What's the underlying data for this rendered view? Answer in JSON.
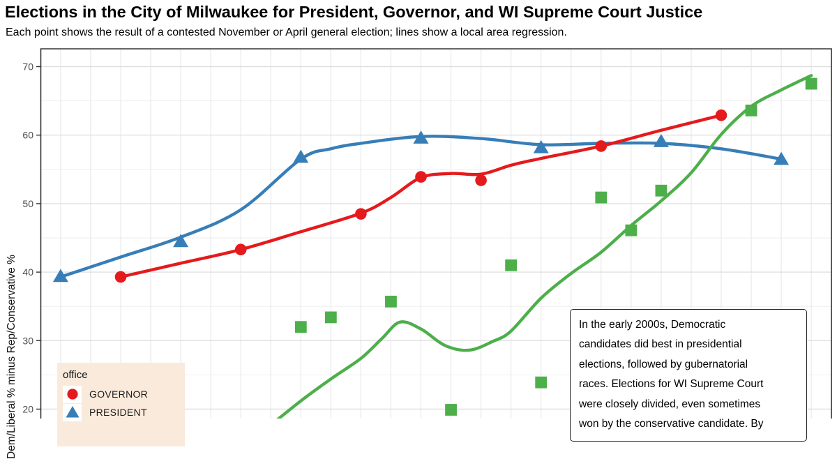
{
  "header": {
    "title": "Elections in the City of Milwaukee for President, Governor, and WI Supreme Court Justice",
    "subtitle": "Each point shows the result of a contested November or April general election; lines show a local area regression."
  },
  "y_axis": {
    "label": "Dem/Liberal % minus Rep/Conservative %"
  },
  "legend": {
    "title": "office",
    "items": [
      {
        "label": "GOVERNOR",
        "marker": "circle",
        "color": "#E41A1C"
      },
      {
        "label": "PRESIDENT",
        "marker": "triangle",
        "color": "#377EB8"
      }
    ]
  },
  "annotation": {
    "lines": [
      "In the early 2000s, Democratic",
      "candidates did best in presidential",
      "elections, followed by gubernatorial",
      "races. Elections for WI Supreme Court",
      "were closely divided, even sometimes",
      "won by the conservative candidate. By"
    ]
  },
  "chart_data": {
    "type": "scatter",
    "title": "Elections in the City of Milwaukee for President, Governor, and WI Supreme Court Justice",
    "subtitle": "Each point shows the result of a contested November or April general election; lines show a local area regression.",
    "xlabel": "",
    "ylabel": "Dem/Liberal % minus Rep/Conservative %",
    "grid": true,
    "legend_position": "bottom-left",
    "x_visible_range_years": [
      2000,
      2025
    ],
    "y_visible_range": [
      17.5,
      72.6
    ],
    "y_major_ticks": [
      70,
      60,
      50,
      40,
      30,
      20
    ],
    "y_minor_gridlines": [
      65,
      55,
      45,
      35,
      25
    ],
    "x_gridline_step_years": 1,
    "series": [
      {
        "name": "PRESIDENT",
        "marker": "triangle",
        "color": "#377EB8",
        "points": [
          [
            2000,
            39.4
          ],
          [
            2004,
            44.5
          ],
          [
            2008,
            56.8
          ],
          [
            2012,
            59.6
          ],
          [
            2016,
            58.2
          ],
          [
            2020,
            59.1
          ],
          [
            2024,
            56.5
          ]
        ],
        "trend": [
          [
            2000,
            39.3
          ],
          [
            2002,
            42.2
          ],
          [
            2004,
            45.1
          ],
          [
            2006,
            49.1
          ],
          [
            2008,
            56.5
          ],
          [
            2009,
            58.0
          ],
          [
            2010,
            58.8
          ],
          [
            2012,
            59.8
          ],
          [
            2014,
            59.5
          ],
          [
            2016,
            58.6
          ],
          [
            2018,
            58.8
          ],
          [
            2020,
            58.8
          ],
          [
            2022,
            58.0
          ],
          [
            2024,
            56.5
          ]
        ]
      },
      {
        "name": "GOVERNOR",
        "marker": "circle",
        "color": "#E41A1C",
        "points": [
          [
            2002,
            39.3
          ],
          [
            2006,
            43.3
          ],
          [
            2010,
            48.5
          ],
          [
            2012,
            53.9
          ],
          [
            2014,
            53.4
          ],
          [
            2018,
            58.4
          ],
          [
            2022,
            62.9
          ]
        ],
        "trend": [
          [
            2002,
            39.3
          ],
          [
            2004,
            41.3
          ],
          [
            2006,
            43.3
          ],
          [
            2008,
            45.9
          ],
          [
            2010,
            48.6
          ],
          [
            2011,
            50.9
          ],
          [
            2012,
            53.8
          ],
          [
            2013,
            54.4
          ],
          [
            2014,
            54.3
          ],
          [
            2015,
            55.6
          ],
          [
            2016,
            56.6
          ],
          [
            2018,
            58.4
          ],
          [
            2020,
            60.7
          ],
          [
            2022,
            62.9
          ]
        ]
      },
      {
        "name": "WI SUPREME COURT JUSTICE",
        "marker": "square",
        "color": "#4DAF4A",
        "points": [
          [
            2008,
            32.0
          ],
          [
            2009,
            33.4
          ],
          [
            2011,
            35.7
          ],
          [
            2013,
            19.9
          ],
          [
            2015,
            41.0
          ],
          [
            2016,
            23.9
          ],
          [
            2018,
            50.9
          ],
          [
            2019,
            46.1
          ],
          [
            2020,
            51.9
          ],
          [
            2023,
            63.6
          ],
          [
            2025,
            67.5
          ]
        ],
        "trend": [
          [
            2006.95,
            17.5
          ],
          [
            2008,
            21.2
          ],
          [
            2009,
            24.4
          ],
          [
            2010,
            27.4
          ],
          [
            2010.7,
            30.3
          ],
          [
            2011.3,
            32.7
          ],
          [
            2012,
            31.7
          ],
          [
            2012.8,
            29.3
          ],
          [
            2013.6,
            28.6
          ],
          [
            2014.4,
            29.9
          ],
          [
            2015,
            31.4
          ],
          [
            2016,
            36.2
          ],
          [
            2017,
            39.8
          ],
          [
            2018,
            42.9
          ],
          [
            2019,
            46.8
          ],
          [
            2020,
            50.4
          ],
          [
            2021,
            54.5
          ],
          [
            2022,
            60.1
          ],
          [
            2023,
            64.2
          ],
          [
            2024,
            66.6
          ],
          [
            2025,
            68.7
          ]
        ]
      }
    ]
  }
}
